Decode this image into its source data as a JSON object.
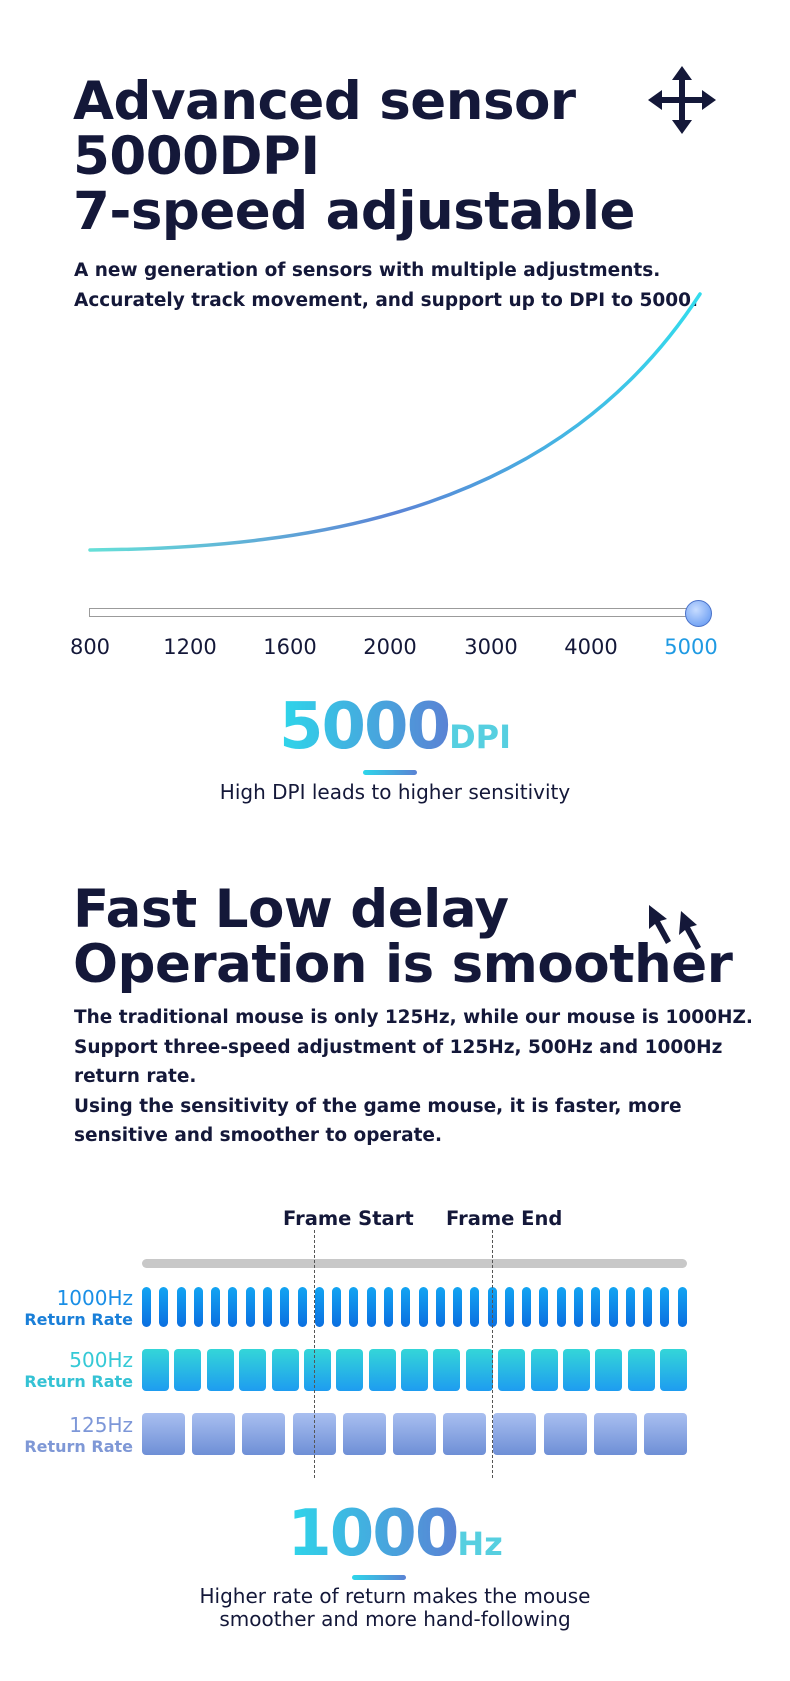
{
  "section1": {
    "title_lines": [
      "Advanced sensor",
      "5000DPI",
      "7-speed adjustable"
    ],
    "desc_lines": [
      "A new generation of sensors with multiple adjustments.",
      "Accurately track movement, and support up to DPI to 5000."
    ],
    "icon": "move-arrows-icon",
    "slider": {
      "ticks": [
        "800",
        "1200",
        "1600",
        "2000",
        "3000",
        "4000",
        "5000"
      ],
      "selected": "5000"
    },
    "highlight": {
      "value": "5000",
      "unit": "DPI"
    },
    "caption": "High DPI leads to higher sensitivity"
  },
  "section2": {
    "title_lines": [
      "Fast  Low delay",
      "Operation is smoother"
    ],
    "desc_lines": [
      "The traditional mouse is only 125Hz, while our mouse is 1000HZ.",
      "Support three-speed adjustment of 125Hz, 500Hz and 1000Hz",
      "return rate.",
      "Using the sensitivity of the game mouse, it is faster, more",
      "sensitive and smoother to operate."
    ],
    "icon": "pointer-arrows-icon",
    "diagram": {
      "frame_start": "Frame Start",
      "frame_end": "Frame End",
      "rows": [
        {
          "hz": "1000Hz",
          "label": "Return Rate",
          "count": 32,
          "hz_color": "#1a8fe6",
          "label_color": "#1a7fd8"
        },
        {
          "hz": "500Hz",
          "label": "Return Rate",
          "count": 17,
          "hz_color": "#35c9d6",
          "label_color": "#35c2d4"
        },
        {
          "hz": "125Hz",
          "label": "Return Rate",
          "count": 11,
          "hz_color": "#7d97d8",
          "label_color": "#7f98d6"
        }
      ]
    },
    "highlight": {
      "value": "1000",
      "unit": "Hz"
    },
    "caption_lines": [
      "Higher rate of return makes the mouse",
      "smoother and more hand-following"
    ]
  },
  "colors": {
    "dark_text": "#141839",
    "accent_cyan": "#2ed6ea",
    "accent_blue": "#5a82d4",
    "selected_tick": "#1f9ae3"
  }
}
